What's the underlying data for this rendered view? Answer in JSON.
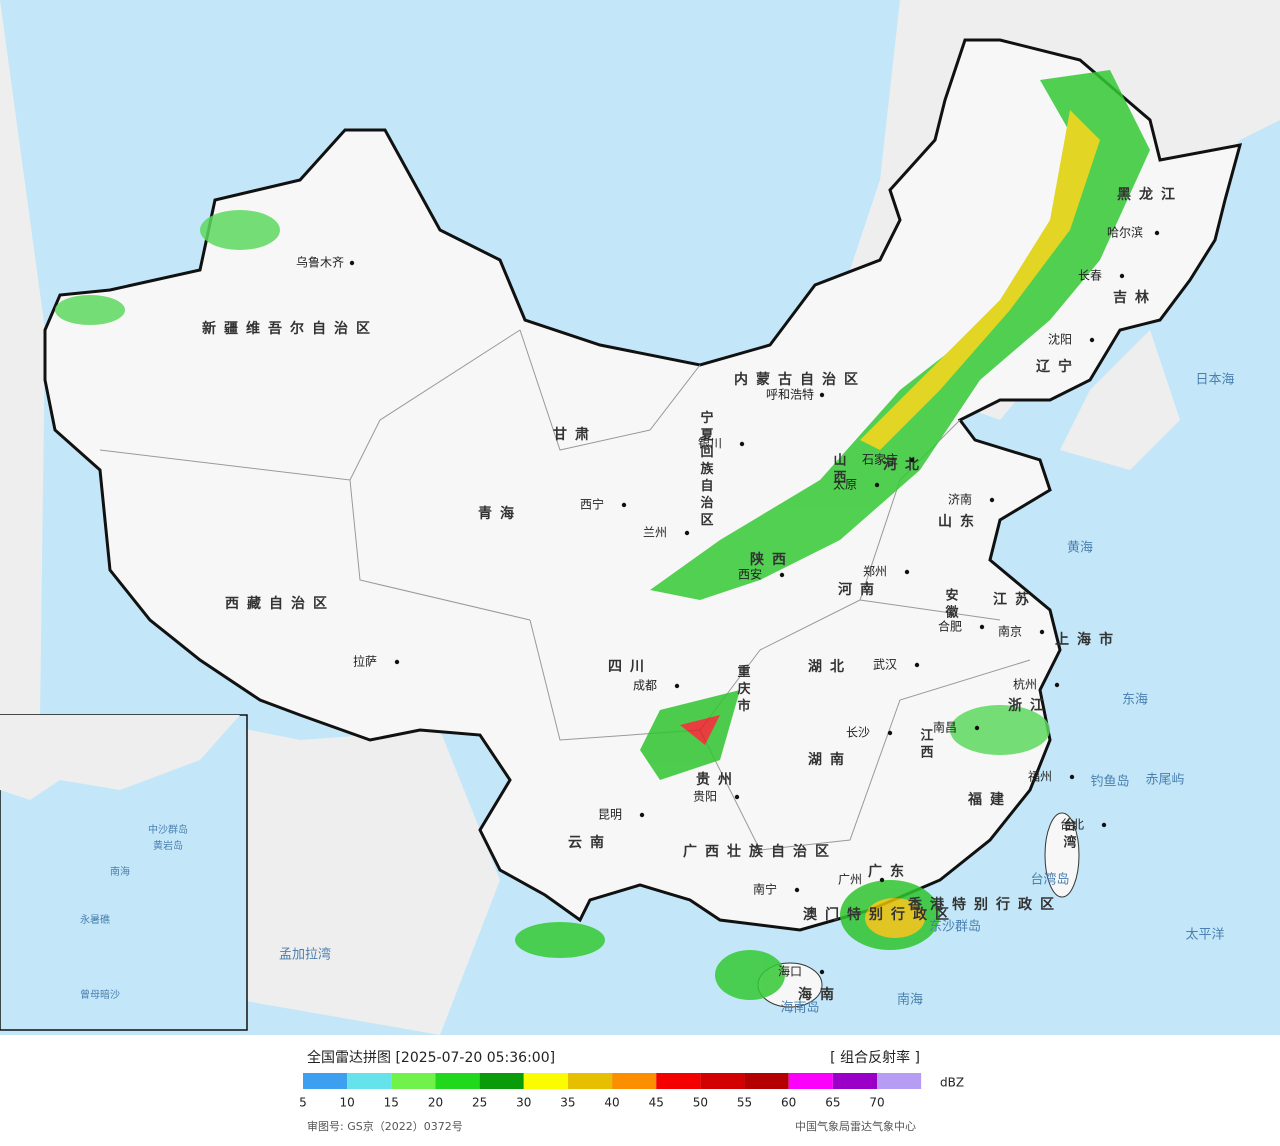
{
  "header": {
    "title": "全国雷达拼图 [2025-07-20 05:36:00]",
    "product": "[ 组合反射率 ]"
  },
  "legend": {
    "unit": "dBZ",
    "ticks": [
      5,
      10,
      15,
      20,
      25,
      30,
      35,
      40,
      45,
      50,
      55,
      60,
      65,
      70
    ],
    "colors": [
      "#3d9ff0",
      "#66e3ea",
      "#70f24a",
      "#21d81c",
      "#0a9b0a",
      "#fcfc00",
      "#e6bf00",
      "#fb8f00",
      "#f50000",
      "#d20000",
      "#b40000",
      "#fb00fb",
      "#9a00c8",
      "#b69cf2"
    ]
  },
  "footer": {
    "approval": "审图号: GS京（2022）0372号",
    "agency": "中国气象局雷达气象中心"
  },
  "map": {
    "provinces": [
      "新疆维吾尔自治区",
      "西藏自治区",
      "青海",
      "甘肃",
      "内蒙古自治区",
      "宁夏回族自治区",
      "陕西",
      "山西",
      "河北",
      "山东",
      "河南",
      "江苏",
      "安徽",
      "湖北",
      "四川",
      "重庆市",
      "贵州",
      "湖南",
      "江西",
      "浙江",
      "福建",
      "云南",
      "广西壮族自治区",
      "广东",
      "海南",
      "台湾",
      "黑龙江",
      "吉林",
      "辽宁",
      "上海市",
      "香港特别行政区",
      "澳门特别行政区"
    ],
    "cities": [
      "乌鲁木齐",
      "拉萨",
      "西宁",
      "兰州",
      "银川",
      "呼和浩特",
      "太原",
      "石家庄",
      "西安",
      "郑州",
      "济南",
      "南京",
      "合肥",
      "武汉",
      "成都",
      "贵阳",
      "长沙",
      "南昌",
      "杭州",
      "福州",
      "昆明",
      "南宁",
      "广州",
      "海口",
      "长春",
      "哈尔滨",
      "沈阳",
      "台北"
    ],
    "seas": [
      "日本海",
      "黄海",
      "东海",
      "太平洋",
      "南海",
      "孟加拉湾",
      "钓鱼岛",
      "赤尾屿",
      "东沙群岛",
      "台湾岛",
      "海南岛"
    ],
    "inset": [
      "南海",
      "中沙群岛",
      "黄岩岛",
      "永暑礁",
      "曾母暗沙"
    ]
  }
}
